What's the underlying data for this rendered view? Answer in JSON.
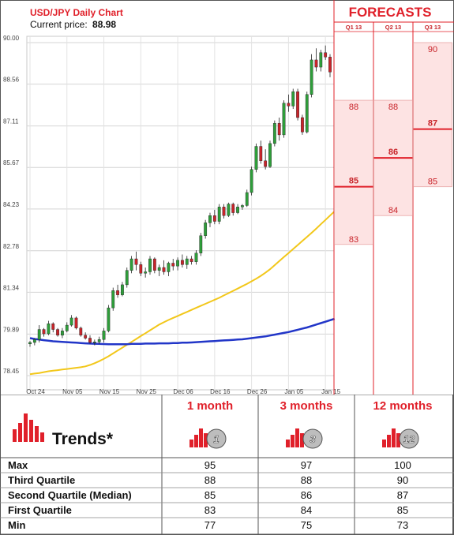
{
  "header": {
    "title": "USD/JPY Daily Chart",
    "price_label": "Current price:",
    "price_value": "88.98"
  },
  "forecasts": {
    "title": "FORECASTS",
    "columns": [
      "Q1 13",
      "Q2 13",
      "Q3 13"
    ],
    "q1": {
      "top": "88",
      "median": "85",
      "bottom": "83"
    },
    "q2": {
      "top": "88",
      "median": "86",
      "bottom": "84"
    },
    "q3": {
      "top": "90",
      "median": "87",
      "bottom": "85"
    }
  },
  "trends_table": {
    "title": "Trends*",
    "columns": [
      {
        "label": "1 month",
        "badge": "1"
      },
      {
        "label": "3 months",
        "badge": "3"
      },
      {
        "label": "12 months",
        "badge": "12"
      }
    ],
    "rows": [
      {
        "label": "Max",
        "values": [
          "95",
          "97",
          "100"
        ]
      },
      {
        "label": "Third Quartile",
        "values": [
          "88",
          "88",
          "90"
        ]
      },
      {
        "label": "Second Quartile (Median)",
        "values": [
          "85",
          "86",
          "87"
        ]
      },
      {
        "label": "First Quartile",
        "values": [
          "83",
          "84",
          "85"
        ]
      },
      {
        "label": "Min",
        "values": [
          "77",
          "75",
          "73"
        ]
      }
    ]
  },
  "colors": {
    "up": "#2e9e3a",
    "down": "#c8242a",
    "ma_short": "#f2c71a",
    "ma_long": "#2236c8",
    "accent": "#e0202a"
  },
  "chart_data": {
    "type": "candlestick",
    "y_ticks": [
      "90.00",
      "88.56",
      "87.11",
      "85.67",
      "84.23",
      "82.78",
      "81.34",
      "79.89",
      "78.45"
    ],
    "ylim": [
      78.45,
      90.0
    ],
    "x_ticks": [
      {
        "label": "Oct 24",
        "i": 0
      },
      {
        "label": "Nov 05",
        "i": 8
      },
      {
        "label": "Nov 15",
        "i": 16
      },
      {
        "label": "Nov 25",
        "i": 24
      },
      {
        "label": "Dec 06",
        "i": 32
      },
      {
        "label": "Dec 16",
        "i": 40
      },
      {
        "label": "Dec 26",
        "i": 48
      },
      {
        "label": "Jan 05",
        "i": 56
      },
      {
        "label": "Jan 15",
        "i": 64
      }
    ],
    "candles": [
      {
        "o": 79.55,
        "h": 79.65,
        "l": 79.45,
        "c": 79.6
      },
      {
        "o": 79.6,
        "h": 79.75,
        "l": 79.5,
        "c": 79.7
      },
      {
        "o": 79.7,
        "h": 80.2,
        "l": 79.6,
        "c": 80.05
      },
      {
        "o": 80.05,
        "h": 80.1,
        "l": 79.8,
        "c": 79.9
      },
      {
        "o": 79.9,
        "h": 80.35,
        "l": 79.85,
        "c": 80.25
      },
      {
        "o": 80.25,
        "h": 80.3,
        "l": 79.95,
        "c": 80.05
      },
      {
        "o": 80.05,
        "h": 80.1,
        "l": 79.8,
        "c": 79.85
      },
      {
        "o": 79.85,
        "h": 80.1,
        "l": 79.75,
        "c": 80.0
      },
      {
        "o": 80.0,
        "h": 80.3,
        "l": 79.95,
        "c": 80.2
      },
      {
        "o": 80.2,
        "h": 80.55,
        "l": 80.15,
        "c": 80.45
      },
      {
        "o": 80.45,
        "h": 80.5,
        "l": 80.05,
        "c": 80.1
      },
      {
        "o": 80.1,
        "h": 80.15,
        "l": 79.8,
        "c": 79.85
      },
      {
        "o": 79.85,
        "h": 79.95,
        "l": 79.7,
        "c": 79.75
      },
      {
        "o": 79.75,
        "h": 79.85,
        "l": 79.55,
        "c": 79.6
      },
      {
        "o": 79.6,
        "h": 79.7,
        "l": 79.5,
        "c": 79.62
      },
      {
        "o": 79.62,
        "h": 79.8,
        "l": 79.55,
        "c": 79.7
      },
      {
        "o": 79.7,
        "h": 80.1,
        "l": 79.6,
        "c": 80.0
      },
      {
        "o": 80.0,
        "h": 80.9,
        "l": 79.95,
        "c": 80.8
      },
      {
        "o": 80.8,
        "h": 81.5,
        "l": 80.7,
        "c": 81.4
      },
      {
        "o": 81.4,
        "h": 81.6,
        "l": 81.15,
        "c": 81.25
      },
      {
        "o": 81.25,
        "h": 81.7,
        "l": 81.2,
        "c": 81.6
      },
      {
        "o": 81.6,
        "h": 82.2,
        "l": 81.5,
        "c": 82.1
      },
      {
        "o": 82.1,
        "h": 82.6,
        "l": 82.0,
        "c": 82.5
      },
      {
        "o": 82.5,
        "h": 82.75,
        "l": 82.1,
        "c": 82.3
      },
      {
        "o": 82.3,
        "h": 82.4,
        "l": 81.9,
        "c": 82.0
      },
      {
        "o": 82.0,
        "h": 82.2,
        "l": 81.85,
        "c": 82.05
      },
      {
        "o": 82.05,
        "h": 82.6,
        "l": 81.95,
        "c": 82.5
      },
      {
        "o": 82.5,
        "h": 82.55,
        "l": 82.0,
        "c": 82.1
      },
      {
        "o": 82.1,
        "h": 82.3,
        "l": 81.9,
        "c": 82.2
      },
      {
        "o": 82.2,
        "h": 82.45,
        "l": 81.95,
        "c": 82.05
      },
      {
        "o": 82.05,
        "h": 82.4,
        "l": 81.9,
        "c": 82.35
      },
      {
        "o": 82.35,
        "h": 82.5,
        "l": 82.1,
        "c": 82.25
      },
      {
        "o": 82.25,
        "h": 82.55,
        "l": 82.1,
        "c": 82.45
      },
      {
        "o": 82.45,
        "h": 82.65,
        "l": 82.2,
        "c": 82.3
      },
      {
        "o": 82.3,
        "h": 82.6,
        "l": 82.15,
        "c": 82.5
      },
      {
        "o": 82.5,
        "h": 82.6,
        "l": 82.3,
        "c": 82.4
      },
      {
        "o": 82.4,
        "h": 82.8,
        "l": 82.3,
        "c": 82.7
      },
      {
        "o": 82.7,
        "h": 83.4,
        "l": 82.6,
        "c": 83.3
      },
      {
        "o": 83.3,
        "h": 83.85,
        "l": 83.2,
        "c": 83.75
      },
      {
        "o": 83.75,
        "h": 84.1,
        "l": 83.6,
        "c": 84.0
      },
      {
        "o": 84.0,
        "h": 84.2,
        "l": 83.7,
        "c": 83.8
      },
      {
        "o": 83.8,
        "h": 84.4,
        "l": 83.7,
        "c": 84.3
      },
      {
        "o": 84.3,
        "h": 84.4,
        "l": 83.9,
        "c": 84.0
      },
      {
        "o": 84.0,
        "h": 84.45,
        "l": 83.95,
        "c": 84.4
      },
      {
        "o": 84.4,
        "h": 84.45,
        "l": 84.0,
        "c": 84.1
      },
      {
        "o": 84.1,
        "h": 84.4,
        "l": 84.05,
        "c": 84.3
      },
      {
        "o": 84.3,
        "h": 84.4,
        "l": 84.2,
        "c": 84.35
      },
      {
        "o": 84.35,
        "h": 84.9,
        "l": 84.3,
        "c": 84.8
      },
      {
        "o": 84.8,
        "h": 85.7,
        "l": 84.7,
        "c": 85.6
      },
      {
        "o": 85.6,
        "h": 86.5,
        "l": 85.5,
        "c": 86.4
      },
      {
        "o": 86.4,
        "h": 86.6,
        "l": 85.8,
        "c": 85.9
      },
      {
        "o": 85.9,
        "h": 86.3,
        "l": 85.6,
        "c": 85.7
      },
      {
        "o": 85.7,
        "h": 86.6,
        "l": 85.65,
        "c": 86.5
      },
      {
        "o": 86.5,
        "h": 87.3,
        "l": 86.4,
        "c": 87.2
      },
      {
        "o": 87.2,
        "h": 87.4,
        "l": 86.6,
        "c": 86.8
      },
      {
        "o": 86.8,
        "h": 88.0,
        "l": 86.7,
        "c": 87.9
      },
      {
        "o": 87.9,
        "h": 88.2,
        "l": 87.6,
        "c": 87.8
      },
      {
        "o": 87.8,
        "h": 88.4,
        "l": 87.7,
        "c": 88.3
      },
      {
        "o": 88.3,
        "h": 88.4,
        "l": 87.3,
        "c": 87.4
      },
      {
        "o": 87.4,
        "h": 87.5,
        "l": 86.8,
        "c": 86.9
      },
      {
        "o": 86.9,
        "h": 88.3,
        "l": 86.85,
        "c": 88.2
      },
      {
        "o": 88.2,
        "h": 89.6,
        "l": 88.1,
        "c": 89.4
      },
      {
        "o": 89.4,
        "h": 89.8,
        "l": 89.0,
        "c": 89.15
      },
      {
        "o": 89.15,
        "h": 89.75,
        "l": 89.0,
        "c": 89.65
      },
      {
        "o": 89.65,
        "h": 89.9,
        "l": 89.4,
        "c": 89.5
      },
      {
        "o": 89.5,
        "h": 89.6,
        "l": 88.8,
        "c": 88.98
      }
    ],
    "ma_short": [
      78.5,
      78.52,
      78.54,
      78.57,
      78.6,
      78.62,
      78.64,
      78.66,
      78.68,
      78.7,
      78.72,
      78.74,
      78.77,
      78.82,
      78.88,
      78.95,
      79.03,
      79.12,
      79.22,
      79.32,
      79.42,
      79.52,
      79.62,
      79.72,
      79.82,
      79.92,
      80.02,
      80.12,
      80.22,
      80.3,
      80.38,
      80.45,
      80.52,
      80.59,
      80.66,
      80.73,
      80.8,
      80.87,
      80.94,
      81.01,
      81.08,
      81.15,
      81.23,
      81.31,
      81.39,
      81.47,
      81.55,
      81.63,
      81.72,
      81.81,
      81.91,
      82.02,
      82.14,
      82.28,
      82.42,
      82.56,
      82.7,
      82.84,
      82.98,
      83.12,
      83.26,
      83.4,
      83.55,
      83.7,
      83.85,
      84.0,
      84.15
    ],
    "ma_long": [
      79.75,
      79.72,
      79.7,
      79.68,
      79.66,
      79.64,
      79.63,
      79.62,
      79.61,
      79.6,
      79.59,
      79.58,
      79.57,
      79.56,
      79.555,
      79.55,
      79.545,
      79.54,
      79.54,
      79.54,
      79.54,
      79.54,
      79.55,
      79.55,
      79.55,
      79.56,
      79.56,
      79.56,
      79.57,
      79.57,
      79.57,
      79.58,
      79.58,
      79.59,
      79.59,
      79.6,
      79.61,
      79.62,
      79.63,
      79.64,
      79.65,
      79.66,
      79.67,
      79.68,
      79.69,
      79.7,
      79.71,
      79.73,
      79.75,
      79.77,
      79.79,
      79.81,
      79.84,
      79.87,
      79.9,
      79.93,
      79.96,
      80.0,
      80.04,
      80.08,
      80.12,
      80.17,
      80.22,
      80.27,
      80.32,
      80.37,
      80.42
    ],
    "forecast_bands": [
      {
        "period": "Q1 13",
        "top": 88,
        "median": 85,
        "bottom": 83
      },
      {
        "period": "Q2 13",
        "top": 88,
        "median": 86,
        "bottom": 84
      },
      {
        "period": "Q3 13",
        "top": 90,
        "median": 87,
        "bottom": 85
      }
    ]
  }
}
